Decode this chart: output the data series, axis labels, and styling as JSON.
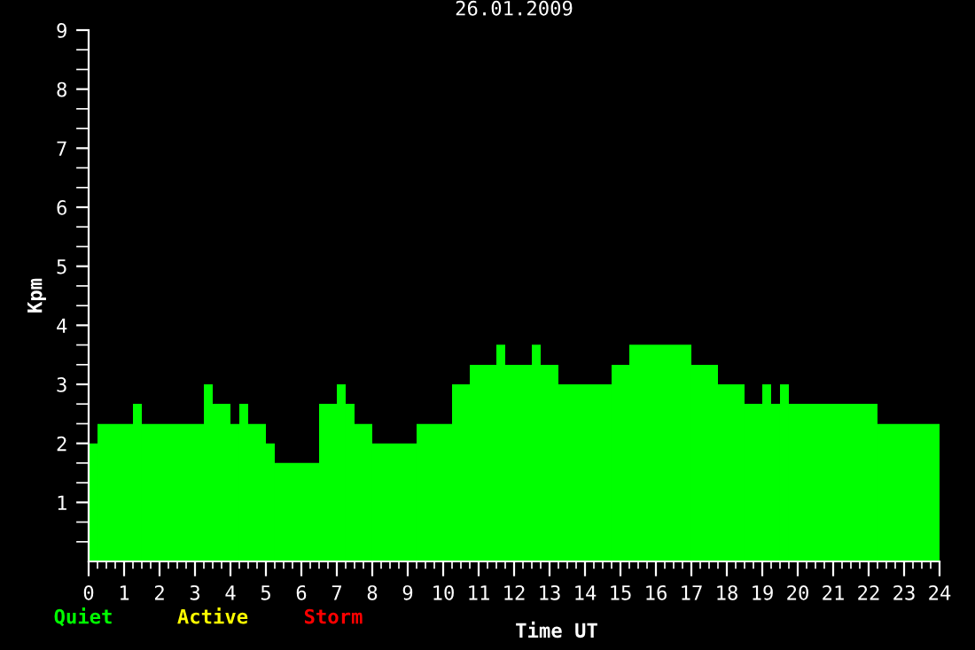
{
  "chart_data": {
    "type": "histogram",
    "title": "26.01.2009",
    "xlabel": "Time UT",
    "ylabel": "Kpm",
    "bins": [
      0,
      0.25,
      1.25,
      1.5,
      3.25,
      3.5,
      4,
      4.25,
      4.5,
      5,
      5.25,
      6.5,
      7,
      7.25,
      7.5,
      8,
      9.25,
      10.25,
      10.75,
      11.5,
      11.75,
      12.5,
      12.75,
      13.25,
      14.75,
      15.25,
      17,
      17.75,
      18.5,
      19,
      19.25,
      19.5,
      19.75,
      22.25,
      24
    ],
    "values": [
      2,
      2.33,
      2.67,
      2.33,
      3,
      2.67,
      2.33,
      2.67,
      2.33,
      2,
      1.67,
      2.67,
      3,
      2.67,
      2.33,
      2,
      2.33,
      3,
      3.33,
      3.67,
      3.33,
      3.67,
      3.33,
      3,
      3.33,
      3.67,
      3.33,
      3,
      2.67,
      3,
      2.67,
      3,
      2.67,
      2.33
    ],
    "color": "#00ff00",
    "xlim": [
      0,
      24
    ],
    "ylim": [
      0,
      9
    ],
    "xticks": [
      0,
      {
        "value": 0.25,
        "label": null
      },
      {
        "value": 0.5,
        "label": null
      },
      {
        "value": 0.75,
        "label": null
      },
      1,
      {
        "value": 1.25,
        "label": null
      },
      {
        "value": 1.5,
        "label": null
      },
      {
        "value": 1.75,
        "label": null
      },
      2,
      {
        "value": 2.25,
        "label": null
      },
      {
        "value": 2.5,
        "label": null
      },
      {
        "value": 2.75,
        "label": null
      },
      3,
      {
        "value": 3.25,
        "label": null
      },
      {
        "value": 3.5,
        "label": null
      },
      {
        "value": 3.75,
        "label": null
      },
      4,
      {
        "value": 4.25,
        "label": null
      },
      {
        "value": 4.5,
        "label": null
      },
      {
        "value": 4.75,
        "label": null
      },
      5,
      {
        "value": 5.25,
        "label": null
      },
      {
        "value": 5.5,
        "label": null
      },
      {
        "value": 5.75,
        "label": null
      },
      6,
      {
        "value": 6.25,
        "label": null
      },
      {
        "value": 6.5,
        "label": null
      },
      {
        "value": 6.75,
        "label": null
      },
      7,
      {
        "value": 7.25,
        "label": null
      },
      {
        "value": 7.5,
        "label": null
      },
      {
        "value": 7.75,
        "label": null
      },
      8,
      {
        "value": 8.25,
        "label": null
      },
      {
        "value": 8.5,
        "label": null
      },
      {
        "value": 8.75,
        "label": null
      },
      9,
      {
        "value": 9.25,
        "label": null
      },
      {
        "value": 9.5,
        "label": null
      },
      {
        "value": 9.75,
        "label": null
      },
      10,
      {
        "value": 10.25,
        "label": null
      },
      {
        "value": 10.5,
        "label": null
      },
      {
        "value": 10.75,
        "label": null
      },
      11,
      {
        "value": 11.25,
        "label": null
      },
      {
        "value": 11.5,
        "label": null
      },
      {
        "value": 11.75,
        "label": null
      },
      12,
      {
        "value": 12.25,
        "label": null
      },
      {
        "value": 12.5,
        "label": null
      },
      {
        "value": 12.75,
        "label": null
      },
      13,
      {
        "value": 13.25,
        "label": null
      },
      {
        "value": 13.5,
        "label": null
      },
      {
        "value": 13.75,
        "label": null
      },
      14,
      {
        "value": 14.25,
        "label": null
      },
      {
        "value": 14.5,
        "label": null
      },
      {
        "value": 14.75,
        "label": null
      },
      15,
      {
        "value": 15.25,
        "label": null
      },
      {
        "value": 15.5,
        "label": null
      },
      {
        "value": 15.75,
        "label": null
      },
      16,
      {
        "value": 16.25,
        "label": null
      },
      {
        "value": 16.5,
        "label": null
      },
      {
        "value": 16.75,
        "label": null
      },
      17,
      {
        "value": 17.25,
        "label": null
      },
      {
        "value": 17.5,
        "label": null
      },
      {
        "value": 17.75,
        "label": null
      },
      18,
      {
        "value": 18.25,
        "label": null
      },
      {
        "value": 18.5,
        "label": null
      },
      {
        "value": 18.75,
        "label": null
      },
      19,
      {
        "value": 19.25,
        "label": null
      },
      {
        "value": 19.5,
        "label": null
      },
      {
        "value": 19.75,
        "label": null
      },
      20,
      {
        "value": 20.25,
        "label": null
      },
      {
        "value": 20.5,
        "label": null
      },
      {
        "value": 20.75,
        "label": null
      },
      21,
      {
        "value": 21.25,
        "label": null
      },
      {
        "value": 21.5,
        "label": null
      },
      {
        "value": 21.75,
        "label": null
      },
      22,
      {
        "value": 22.25,
        "label": null
      },
      {
        "value": 22.5,
        "label": null
      },
      {
        "value": 22.75,
        "label": null
      },
      23,
      {
        "value": 23.25,
        "label": null
      },
      {
        "value": 23.5,
        "label": null
      },
      {
        "value": 23.75,
        "label": null
      },
      24
    ],
    "yticks": [
      {
        "value": 0.333,
        "label": null
      },
      {
        "value": 0.667,
        "label": null
      },
      1,
      {
        "value": 1.333,
        "label": null
      },
      {
        "value": 1.667,
        "label": null
      },
      2,
      {
        "value": 2.333,
        "label": null
      },
      {
        "value": 2.667,
        "label": null
      },
      3,
      {
        "value": 3.333,
        "label": null
      },
      {
        "value": 3.667,
        "label": null
      },
      4,
      {
        "value": 4.333,
        "label": null
      },
      {
        "value": 4.667,
        "label": null
      },
      5,
      {
        "value": 5.333,
        "label": null
      },
      {
        "value": 5.667,
        "label": null
      },
      6,
      {
        "value": 6.333,
        "label": null
      },
      {
        "value": 6.667,
        "label": null
      },
      7,
      {
        "value": 7.333,
        "label": null
      },
      {
        "value": 7.667,
        "label": null
      },
      8,
      {
        "value": 8.333,
        "label": null
      },
      {
        "value": 8.667,
        "label": null
      },
      9
    ],
    "grid": false,
    "legend": false,
    "annotations": [
      "Quiet",
      "Active",
      "Storm"
    ]
  }
}
